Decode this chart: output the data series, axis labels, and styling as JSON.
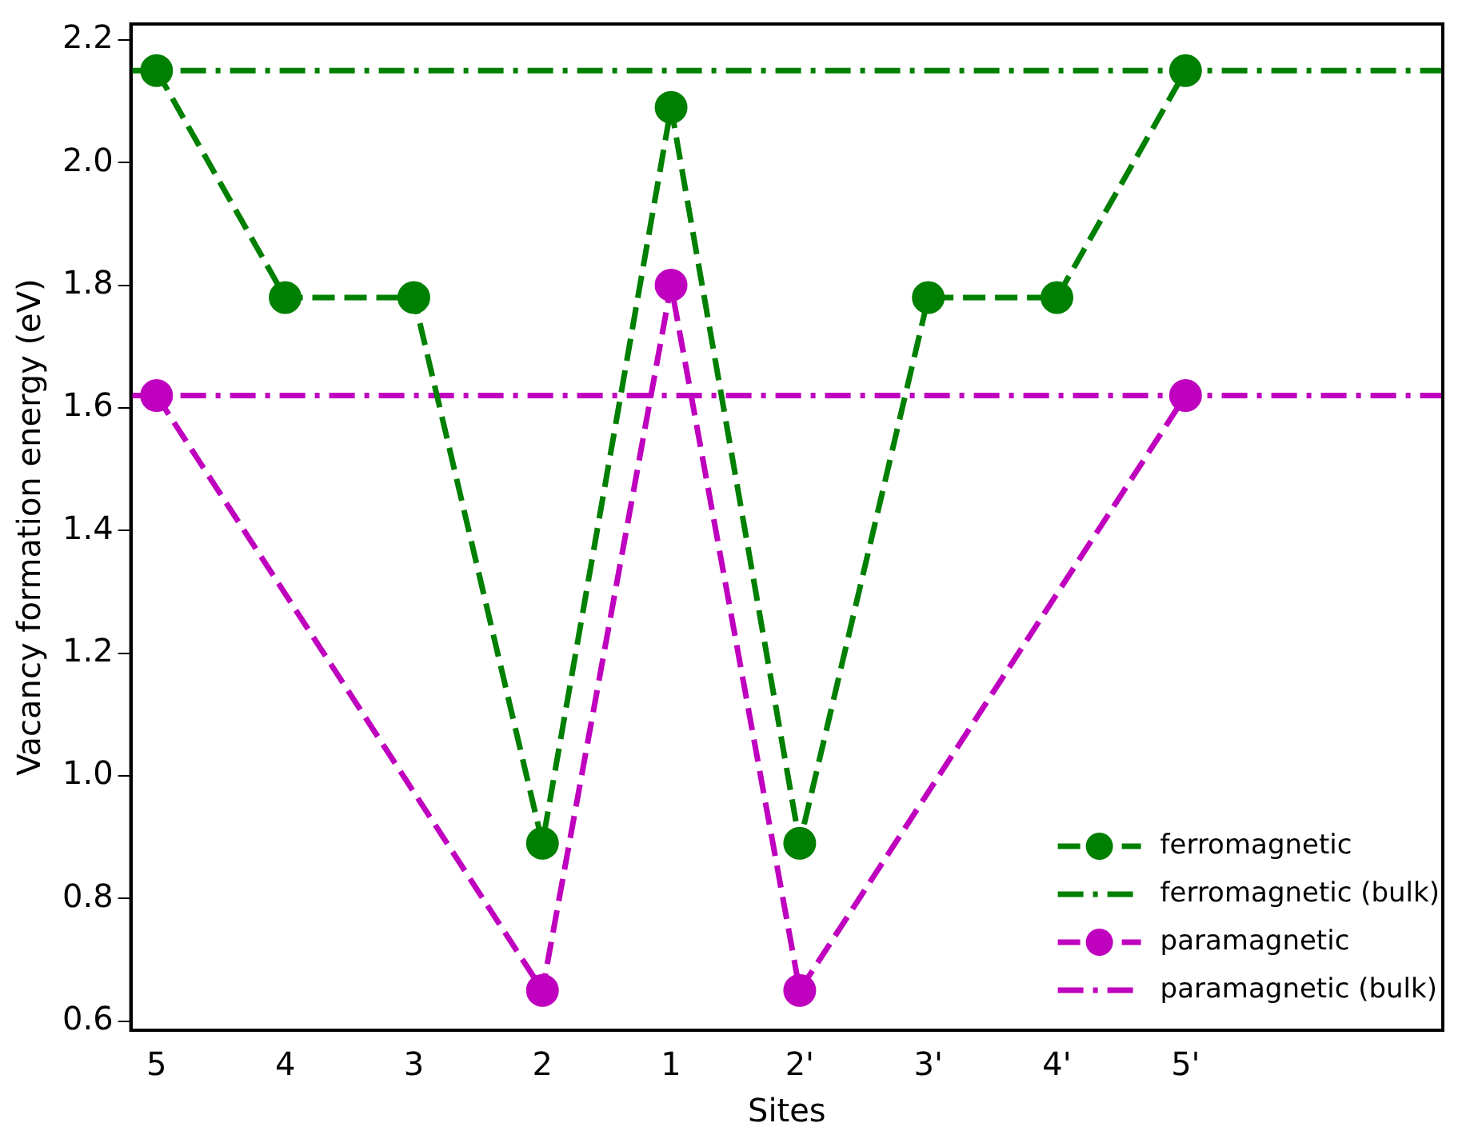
{
  "chart_data": {
    "type": "line",
    "xlabel": "Sites",
    "ylabel": "Vacancy formation energy (eV)",
    "categories": [
      "5",
      "4",
      "3",
      "2",
      "1",
      "2'",
      "3'",
      "4'",
      "5'"
    ],
    "series": [
      {
        "name": "ferromagnetic",
        "color": "#008000",
        "values": [
          2.15,
          1.78,
          1.78,
          0.89,
          2.09,
          0.89,
          1.78,
          1.78,
          2.15
        ]
      },
      {
        "name": "paramagnetic",
        "color": "#bf00bf",
        "values": [
          1.62,
          null,
          null,
          0.65,
          1.8,
          0.65,
          null,
          null,
          1.62
        ]
      }
    ],
    "ref_lines": [
      {
        "axis": "y",
        "value": 2.15,
        "label": "ferromagnetic (bulk)",
        "color": "#008000",
        "line_style": "dashdot"
      },
      {
        "axis": "y",
        "value": 1.62,
        "label": "paramagnetic (bulk)",
        "color": "#bf00bf",
        "line_style": "dashdot"
      }
    ],
    "ylim": [
      0.585,
      2.226
    ],
    "yticks": [
      0.6,
      0.8,
      {
        "value": 1,
        "label": "1.0"
      },
      1.2,
      1.4,
      1.6,
      1.8,
      {
        "value": 2,
        "label": "2.0"
      },
      2.2
    ],
    "marker": "circle",
    "line_style": "dashed",
    "grid": false,
    "legend": "bottom right"
  }
}
